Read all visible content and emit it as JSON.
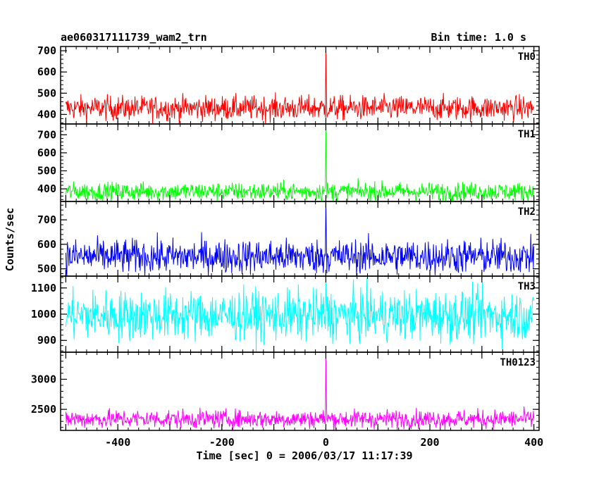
{
  "header": {
    "title": "ae060317111739_wam2_trn",
    "bin_time": "Bin time: 1.0 s"
  },
  "chart_data": {
    "type": "line",
    "title": "ae060317111739_wam2_trn",
    "xlabel": "Time [sec] 0 = 2006/03/17 11:17:39",
    "ylabel": "Counts/sec",
    "xlim": [
      -510,
      410
    ],
    "x_ticks": [
      -400,
      -200,
      0,
      200,
      400
    ],
    "x_range": [
      -500,
      400
    ],
    "peak_time": 0,
    "grid": false,
    "panels": [
      {
        "name": "TH0",
        "color": "#ff0000",
        "ylim": [
          355,
          720
        ],
        "y_ticks": [
          400,
          500,
          600,
          700
        ],
        "baseline": 430,
        "noise_amplitude": 45,
        "peak": 720
      },
      {
        "name": "TH1",
        "color": "#00ff00",
        "ylim": [
          330,
          760
        ],
        "y_ticks": [
          400,
          500,
          600,
          700
        ],
        "baseline": 385,
        "noise_amplitude": 40,
        "peak": 760
      },
      {
        "name": "TH2",
        "color": "#0000ff",
        "ylim": [
          470,
          775
        ],
        "y_ticks": [
          500,
          600,
          700
        ],
        "baseline": 550,
        "noise_amplitude": 55,
        "peak": 775
      },
      {
        "name": "TH3",
        "color": "#00ffff",
        "ylim": [
          855,
          1145
        ],
        "y_ticks": [
          900,
          1000,
          1100
        ],
        "baseline": 995,
        "noise_amplitude": 75,
        "peak": 1145
      },
      {
        "name": "TH0123",
        "color": "#ff00ff",
        "ylim": [
          2150,
          3450
        ],
        "y_ticks": [
          2500,
          3000
        ],
        "baseline": 2340,
        "noise_amplitude": 120,
        "peak": 3450
      }
    ]
  }
}
